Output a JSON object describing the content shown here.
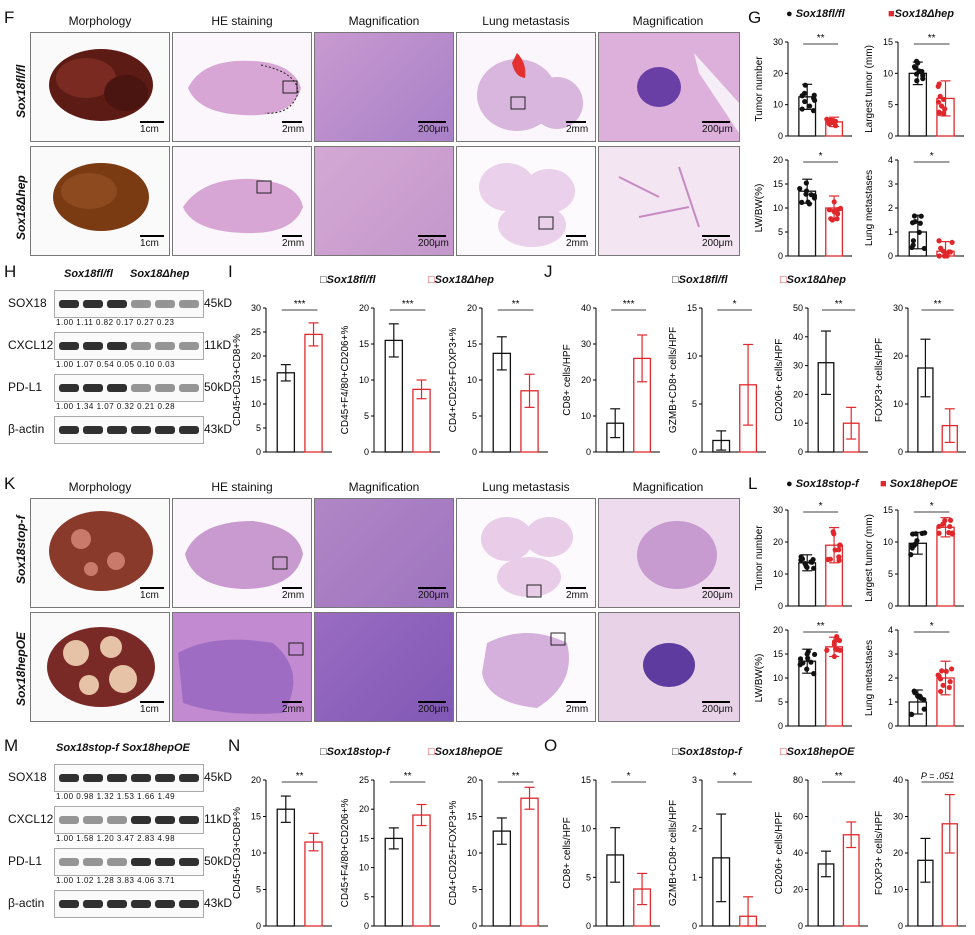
{
  "colors": {
    "control": "#111111",
    "treated": "#e0282c",
    "histology_pink": "#d7a6cf",
    "histology_purple": "#9a6cc2",
    "liver_dark": "#5c1b14",
    "liver_brown": "#7a3a12"
  },
  "panels": {
    "F": {
      "label": "F",
      "cols": [
        "Morphology",
        "HE staining",
        "Magnification",
        "Lung metastasis",
        "Magnification"
      ],
      "rows": [
        "Sox18fl/fl",
        "Sox18Δhep"
      ],
      "scales": {
        "row1": [
          "1cm",
          "2mm",
          "200μm",
          "2mm",
          "200μm"
        ],
        "row2": [
          "1cm",
          "2mm",
          "200μm",
          "2mm",
          "200μm"
        ]
      }
    },
    "K": {
      "label": "K",
      "cols": [
        "Morphology",
        "HE staining",
        "Magnification",
        "Lung metastasis",
        "Magnification"
      ],
      "rows": [
        "Sox18stop-f",
        "Sox18hepOE"
      ],
      "scales": {
        "row1": [
          "1cm",
          "2mm",
          "200μm",
          "2mm",
          "200μm"
        ],
        "row2": [
          "1cm",
          "2mm",
          "200μm",
          "2mm",
          "200μm"
        ]
      }
    },
    "H": {
      "label": "H",
      "groups": [
        "Sox18fl/fl",
        "Sox18Δhep"
      ],
      "blots": [
        {
          "name": "SOX18",
          "kd": "45kD",
          "quant": "1.00  1.11  0.82  0.17  0.27  0.23"
        },
        {
          "name": "CXCL12",
          "kd": "11kD",
          "quant": "1.00  1.07  0.54  0.05  0.10  0.03"
        },
        {
          "name": "PD-L1",
          "kd": "50kD",
          "quant": "1.00  1.34  1.07  0.32  0.21  0.28"
        },
        {
          "name": "β-actin",
          "kd": "43kD",
          "quant": ""
        }
      ]
    },
    "M": {
      "label": "M",
      "groups": [
        "Sox18stop-f",
        "Sox18hepOE"
      ],
      "blots": [
        {
          "name": "SOX18",
          "kd": "45kD",
          "quant": "1.00  0.98  1.32  1.53  1.66  1.49"
        },
        {
          "name": "CXCL12",
          "kd": "11kD",
          "quant": "1.00  1.58  1.20  3.47  2.83  4.98"
        },
        {
          "name": "PD-L1",
          "kd": "50kD",
          "quant": "1.00  1.02  1.28  3.83  4.06  3.71"
        },
        {
          "name": "β-actin",
          "kd": "43kD",
          "quant": ""
        }
      ]
    },
    "G": {
      "label": "G",
      "legend": [
        "Sox18fl/fl",
        "Sox18Δhep"
      ]
    },
    "I": {
      "label": "I",
      "legend": [
        "Sox18fl/fl",
        "Sox18Δhep"
      ]
    },
    "J": {
      "label": "J",
      "legend": [
        "Sox18fl/fl",
        "Sox18Δhep"
      ]
    },
    "L": {
      "label": "L",
      "legend": [
        "Sox18stop-f",
        "Sox18hepOE"
      ]
    },
    "N": {
      "label": "N",
      "legend": [
        "Sox18stop-f",
        "Sox18hepOE"
      ]
    },
    "O": {
      "label": "O",
      "legend": [
        "Sox18stop-f",
        "Sox18hepOE"
      ]
    }
  },
  "chart_data": [
    {
      "id": "G1",
      "type": "bar",
      "ylabel": "Tumor number",
      "ylim": [
        0,
        30
      ],
      "yticks": [
        0,
        10,
        20,
        30
      ],
      "sig": "**",
      "dots": true,
      "series": [
        {
          "values": [
            12.5
          ],
          "err": 4
        },
        {
          "values": [
            4.5
          ],
          "err": 1.5
        }
      ]
    },
    {
      "id": "G2",
      "type": "bar",
      "ylabel": "Largest tumor (mm)",
      "ylim": [
        0,
        15
      ],
      "yticks": [
        0,
        5,
        10,
        15
      ],
      "sig": "**",
      "dots": true,
      "series": [
        {
          "values": [
            10
          ],
          "err": 1.8
        },
        {
          "values": [
            6
          ],
          "err": 2.8
        }
      ]
    },
    {
      "id": "G3",
      "type": "bar",
      "ylabel": "LW/BW(%)",
      "ylim": [
        0,
        20
      ],
      "yticks": [
        0,
        5,
        10,
        15,
        20
      ],
      "sig": "*",
      "dots": true,
      "series": [
        {
          "values": [
            13.5
          ],
          "err": 2.5
        },
        {
          "values": [
            10
          ],
          "err": 2.5
        }
      ]
    },
    {
      "id": "G4",
      "type": "bar",
      "ylabel": "Lung metastases",
      "ylim": [
        0,
        4
      ],
      "yticks": [
        0,
        1,
        2,
        3,
        4
      ],
      "sig": "*",
      "dots": true,
      "series": [
        {
          "values": [
            1
          ],
          "err": 0.7
        },
        {
          "values": [
            0.2
          ],
          "err": 0.4
        }
      ]
    },
    {
      "id": "I1",
      "type": "bar",
      "ylabel": "CD45+CD3+CD8+%",
      "ylim": [
        0,
        30
      ],
      "yticks": [
        0,
        5,
        10,
        15,
        20,
        25,
        30
      ],
      "sig": "***",
      "series": [
        {
          "values": [
            16.5
          ],
          "err": 1.7
        },
        {
          "values": [
            24.5
          ],
          "err": 2.4
        }
      ]
    },
    {
      "id": "I2",
      "type": "bar",
      "ylabel": "CD45+F4/80+CD206+%",
      "ylim": [
        0,
        20
      ],
      "yticks": [
        0,
        5,
        10,
        15,
        20
      ],
      "sig": "***",
      "series": [
        {
          "values": [
            15.5
          ],
          "err": 2.3
        },
        {
          "values": [
            8.7
          ],
          "err": 1.3
        }
      ]
    },
    {
      "id": "I3",
      "type": "bar",
      "ylabel": "CD4+CD25+FOXP3+%",
      "ylim": [
        0,
        20
      ],
      "yticks": [
        0,
        5,
        10,
        15,
        20
      ],
      "sig": "**",
      "series": [
        {
          "values": [
            13.7
          ],
          "err": 2.3
        },
        {
          "values": [
            8.5
          ],
          "err": 2.3
        }
      ]
    },
    {
      "id": "J1",
      "type": "bar",
      "ylabel": "CD8+ cells/HPF",
      "ylim": [
        0,
        40
      ],
      "yticks": [
        0,
        10,
        20,
        30,
        40
      ],
      "sig": "***",
      "series": [
        {
          "values": [
            8
          ],
          "err": 4
        },
        {
          "values": [
            26
          ],
          "err": 6.5
        }
      ]
    },
    {
      "id": "J2",
      "type": "bar",
      "ylabel": "GZMB+CD8+ cells/HPF",
      "ylim": [
        0,
        15
      ],
      "yticks": [
        0,
        5,
        10,
        15
      ],
      "sig": "*",
      "series": [
        {
          "values": [
            1.2
          ],
          "err": 1
        },
        {
          "values": [
            7
          ],
          "err": 4.2
        }
      ]
    },
    {
      "id": "J3",
      "type": "bar",
      "ylabel": "CD206+ cells/HPF",
      "ylim": [
        0,
        50
      ],
      "yticks": [
        0,
        10,
        20,
        30,
        40,
        50
      ],
      "sig": "**",
      "series": [
        {
          "values": [
            31
          ],
          "err": 11
        },
        {
          "values": [
            10
          ],
          "err": 5.5
        }
      ]
    },
    {
      "id": "J4",
      "type": "bar",
      "ylabel": "FOXP3+ cells/HPF",
      "ylim": [
        0,
        30
      ],
      "yticks": [
        0,
        10,
        20,
        30
      ],
      "sig": "**",
      "series": [
        {
          "values": [
            17.5
          ],
          "err": 6
        },
        {
          "values": [
            5.5
          ],
          "err": 3.5
        }
      ]
    },
    {
      "id": "L1",
      "type": "bar",
      "ylabel": "Tumor number",
      "ylim": [
        0,
        30
      ],
      "yticks": [
        0,
        10,
        20,
        30
      ],
      "sig": "*",
      "dots": true,
      "series": [
        {
          "values": [
            13.5
          ],
          "err": 2.5
        },
        {
          "values": [
            19
          ],
          "err": 5.5
        }
      ]
    },
    {
      "id": "L2",
      "type": "bar",
      "ylabel": "Largest tumor (mm)",
      "ylim": [
        0,
        15
      ],
      "yticks": [
        0,
        5,
        10,
        15
      ],
      "sig": "*",
      "dots": true,
      "series": [
        {
          "values": [
            9.8
          ],
          "err": 1.7
        },
        {
          "values": [
            12.3
          ],
          "err": 1.5
        }
      ]
    },
    {
      "id": "L3",
      "type": "bar",
      "ylabel": "LW/BW(%)",
      "ylim": [
        0,
        20
      ],
      "yticks": [
        0,
        5,
        10,
        15,
        20
      ],
      "sig": "**",
      "dots": true,
      "series": [
        {
          "values": [
            13.5
          ],
          "err": 2.5
        },
        {
          "values": [
            16.5
          ],
          "err": 2
        }
      ]
    },
    {
      "id": "L4",
      "type": "bar",
      "ylabel": "Lung metastases",
      "ylim": [
        0,
        4
      ],
      "yticks": [
        0,
        1,
        2,
        3,
        4
      ],
      "sig": "*",
      "dots": true,
      "series": [
        {
          "values": [
            1
          ],
          "err": 0.5
        },
        {
          "values": [
            2
          ],
          "err": 0.7
        }
      ]
    },
    {
      "id": "N1",
      "type": "bar",
      "ylabel": "CD45+CD3+CD8+%",
      "ylim": [
        0,
        20
      ],
      "yticks": [
        0,
        5,
        10,
        15,
        20
      ],
      "sig": "**",
      "series": [
        {
          "values": [
            16
          ],
          "err": 1.8
        },
        {
          "values": [
            11.5
          ],
          "err": 1.2
        }
      ]
    },
    {
      "id": "N2",
      "type": "bar",
      "ylabel": "CD45+F4/80+CD206+%",
      "ylim": [
        0,
        25
      ],
      "yticks": [
        0,
        5,
        10,
        15,
        20,
        25
      ],
      "sig": "**",
      "series": [
        {
          "values": [
            15
          ],
          "err": 1.8
        },
        {
          "values": [
            19
          ],
          "err": 1.8
        }
      ]
    },
    {
      "id": "N3",
      "type": "bar",
      "ylabel": "CD4+CD25+FOXP3+%",
      "ylim": [
        0,
        20
      ],
      "yticks": [
        0,
        5,
        10,
        15,
        20
      ],
      "sig": "**",
      "series": [
        {
          "values": [
            13
          ],
          "err": 1.8
        },
        {
          "values": [
            17.5
          ],
          "err": 1.5
        }
      ]
    },
    {
      "id": "O1",
      "type": "bar",
      "ylabel": "CD8+ cells/HPF",
      "ylim": [
        0,
        15
      ],
      "yticks": [
        0,
        5,
        10,
        15
      ],
      "sig": "*",
      "series": [
        {
          "values": [
            7.3
          ],
          "err": 2.8
        },
        {
          "values": [
            3.8
          ],
          "err": 1.6
        }
      ]
    },
    {
      "id": "O2",
      "type": "bar",
      "ylabel": "GZMB+CD8+ cells/HPF",
      "ylim": [
        0,
        3
      ],
      "yticks": [
        0,
        1,
        2,
        3
      ],
      "sig": "*",
      "series": [
        {
          "values": [
            1.4
          ],
          "err": 0.9
        },
        {
          "values": [
            0.2
          ],
          "err": 0.4
        }
      ]
    },
    {
      "id": "O3",
      "type": "bar",
      "ylabel": "CD206+ cells/HPF",
      "ylim": [
        0,
        80
      ],
      "yticks": [
        0,
        20,
        40,
        60,
        80
      ],
      "sig": "**",
      "series": [
        {
          "values": [
            34
          ],
          "err": 7
        },
        {
          "values": [
            50
          ],
          "err": 7
        }
      ]
    },
    {
      "id": "O4",
      "type": "bar",
      "ylabel": "FOXP3+ cells/HPF",
      "ylim": [
        0,
        40
      ],
      "yticks": [
        0,
        10,
        20,
        30,
        40
      ],
      "sig": "P = .051",
      "series": [
        {
          "values": [
            18
          ],
          "err": 6
        },
        {
          "values": [
            28
          ],
          "err": 8
        }
      ]
    }
  ]
}
